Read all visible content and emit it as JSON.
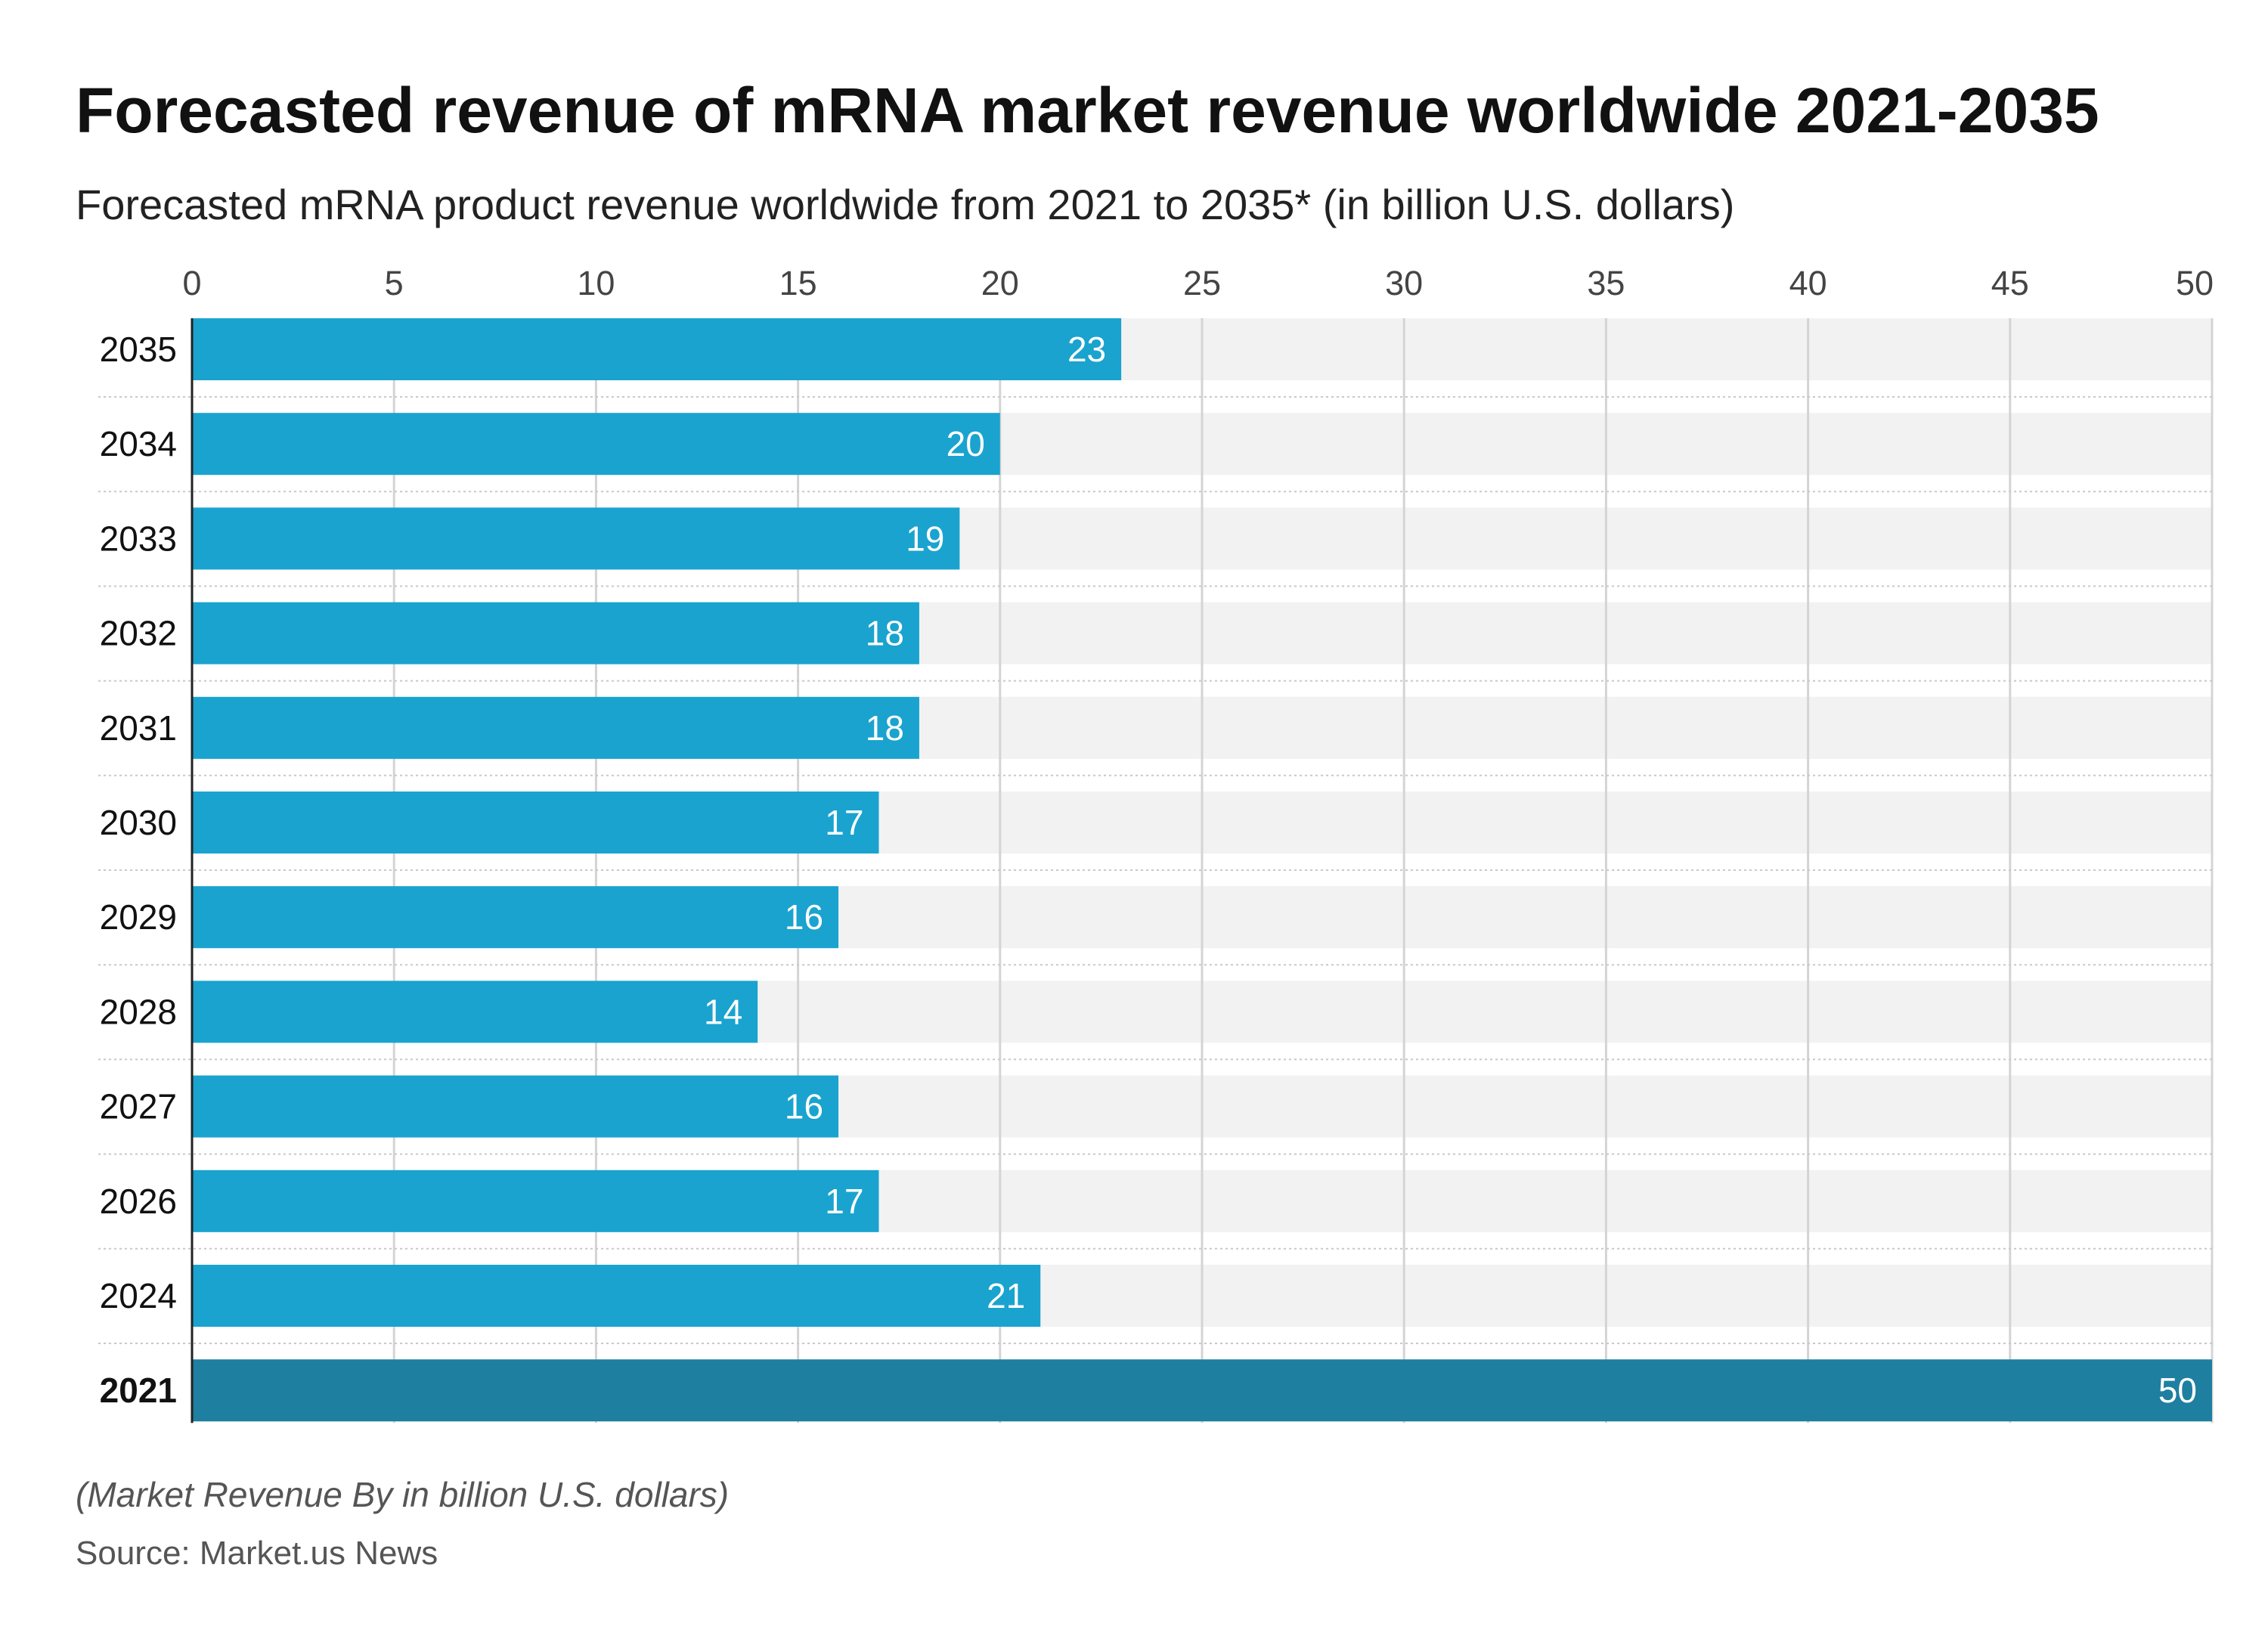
{
  "title": "Forecasted revenue of mRNA market revenue worldwide 2021-2035",
  "subtitle": "Forecasted mRNA product revenue worldwide from 2021 to 2035* (in billion U.S. dollars)",
  "note": "(Market Revenue By in billion U.S. dollars)",
  "source": "Source: Market.us News",
  "colors": {
    "bar": "#1aa3cf",
    "bar_highlight": "#1e7fa0",
    "track": "#f2f2f2",
    "grid": "#d4d4d4"
  },
  "chart_data": {
    "type": "bar",
    "orientation": "horizontal",
    "categories": [
      "2035",
      "2034",
      "2033",
      "2032",
      "2031",
      "2030",
      "2029",
      "2028",
      "2027",
      "2026",
      "2024",
      "2021"
    ],
    "values": [
      23,
      20,
      19,
      18,
      18,
      17,
      16,
      14,
      16,
      17,
      21,
      50
    ],
    "highlighted": "2021",
    "xlim": [
      0,
      50
    ],
    "xticks": [
      0,
      5,
      10,
      15,
      20,
      25,
      30,
      35,
      40,
      45,
      50
    ],
    "axis_position": "top",
    "grid": true,
    "xlabel": "",
    "ylabel": ""
  }
}
